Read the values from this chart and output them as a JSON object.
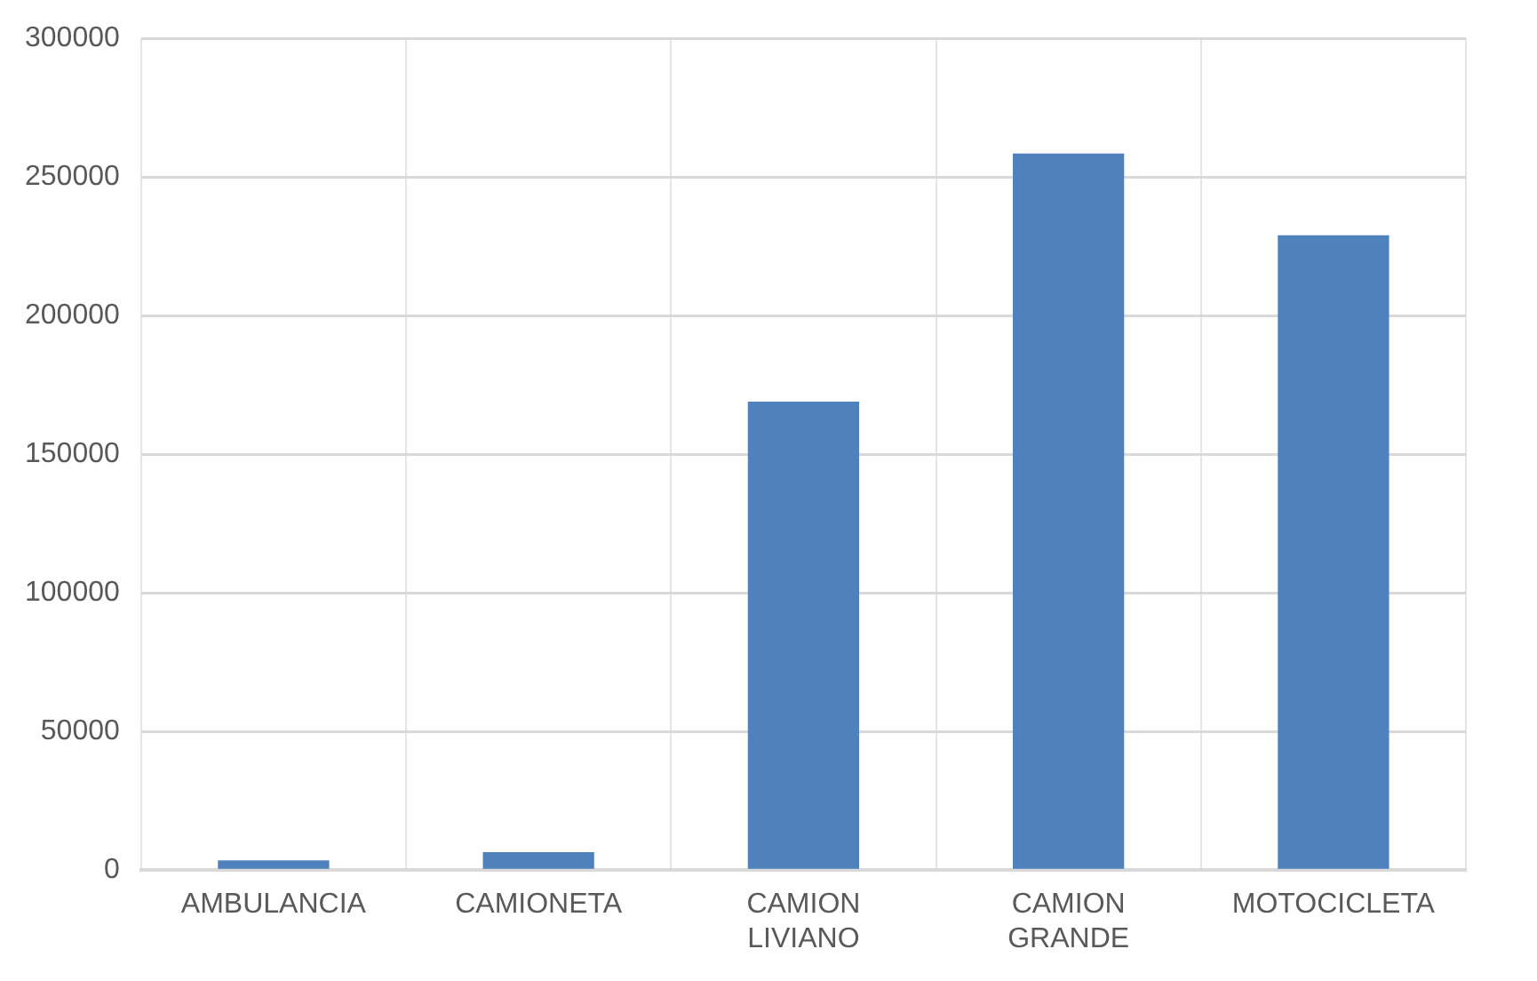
{
  "chart_data": {
    "type": "bar",
    "categories": [
      "AMBULANCIA",
      "CAMIONETA",
      "CAMION LIVIANO",
      "CAMION GRANDE",
      "MOTOCICLETA"
    ],
    "values": [
      3500,
      6500,
      169000,
      258500,
      229000
    ],
    "color": "#4f81bd",
    "ylim": [
      0,
      300000
    ],
    "yticks": [
      0,
      50000,
      100000,
      150000,
      200000,
      250000,
      300000
    ],
    "grid": true,
    "legend": false
  }
}
